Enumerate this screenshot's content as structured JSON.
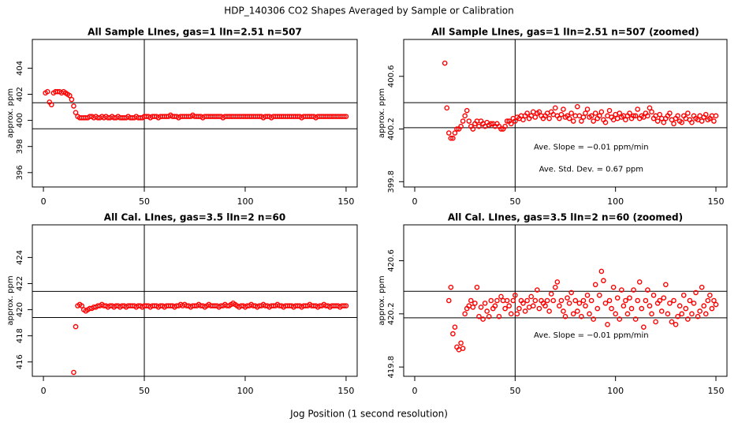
{
  "title": "HDP_140306  CO2 Shapes Averaged by Sample or Calibration",
  "xlabel": "Jog Position (1 second resolution)",
  "chart_data": [
    {
      "type": "scatter",
      "title": "All Sample LInes, gas=1 lIn=2.51 n=507",
      "ylabel": "approx. ppm",
      "color": "#ff0000",
      "xlim": [
        -5.5,
        155.5
      ],
      "xticks": [
        0,
        50,
        100,
        150
      ],
      "ylim": [
        394.9,
        406.2
      ],
      "yticks": [
        396,
        398,
        400,
        402,
        404
      ],
      "hlines": [
        401.35,
        399.36
      ],
      "vlines": [
        50
      ],
      "annotations": [],
      "x": [
        1,
        2,
        3,
        4,
        5,
        6,
        7,
        8,
        9,
        10,
        11,
        12,
        13,
        14,
        15,
        16,
        17,
        18,
        19,
        20,
        21,
        22,
        23,
        24,
        25,
        26,
        27,
        28,
        29,
        30,
        31,
        32,
        33,
        34,
        35,
        36,
        37,
        38,
        39,
        40,
        41,
        42,
        43,
        44,
        45,
        46,
        47,
        48,
        49,
        50,
        51,
        52,
        53,
        54,
        55,
        56,
        57,
        58,
        59,
        60,
        61,
        62,
        63,
        64,
        65,
        66,
        67,
        68,
        69,
        70,
        71,
        72,
        73,
        74,
        75,
        76,
        77,
        78,
        79,
        80,
        81,
        82,
        83,
        84,
        85,
        86,
        87,
        88,
        89,
        90,
        91,
        92,
        93,
        94,
        95,
        96,
        97,
        98,
        99,
        100,
        101,
        102,
        103,
        104,
        105,
        106,
        107,
        108,
        109,
        110,
        111,
        112,
        113,
        114,
        115,
        116,
        117,
        118,
        119,
        120,
        121,
        122,
        123,
        124,
        125,
        126,
        127,
        128,
        129,
        130,
        131,
        132,
        133,
        134,
        135,
        136,
        137,
        138,
        139,
        140,
        141,
        142,
        143,
        144,
        145,
        146,
        147,
        148,
        149,
        150
      ],
      "values": [
        402.1,
        402.2,
        401.4,
        401.2,
        402.1,
        402.2,
        402.2,
        402.2,
        402.1,
        402.2,
        402.1,
        402.0,
        401.9,
        401.6,
        401.1,
        400.6,
        400.3,
        400.2,
        400.2,
        400.2,
        400.2,
        400.2,
        400.3,
        400.3,
        400.2,
        400.3,
        400.2,
        400.2,
        400.3,
        400.2,
        400.3,
        400.2,
        400.2,
        400.3,
        400.2,
        400.2,
        400.3,
        400.2,
        400.2,
        400.2,
        400.2,
        400.3,
        400.2,
        400.2,
        400.2,
        400.3,
        400.2,
        400.2,
        400.2,
        400.3,
        400.3,
        400.3,
        400.2,
        400.3,
        400.3,
        400.3,
        400.2,
        400.3,
        400.3,
        400.3,
        400.3,
        400.3,
        400.4,
        400.3,
        400.3,
        400.3,
        400.2,
        400.3,
        400.3,
        400.3,
        400.3,
        400.3,
        400.3,
        400.4,
        400.3,
        400.3,
        400.3,
        400.3,
        400.2,
        400.3,
        400.3,
        400.3,
        400.3,
        400.3,
        400.3,
        400.3,
        400.3,
        400.3,
        400.2,
        400.3,
        400.3,
        400.3,
        400.3,
        400.3,
        400.3,
        400.3,
        400.3,
        400.3,
        400.3,
        400.3,
        400.3,
        400.3,
        400.3,
        400.3,
        400.3,
        400.3,
        400.3,
        400.3,
        400.2,
        400.3,
        400.3,
        400.3,
        400.2,
        400.3,
        400.3,
        400.3,
        400.3,
        400.3,
        400.3,
        400.3,
        400.3,
        400.3,
        400.3,
        400.3,
        400.3,
        400.3,
        400.3,
        400.2,
        400.3,
        400.3,
        400.3,
        400.3,
        400.3,
        400.3,
        400.2,
        400.3,
        400.3,
        400.3,
        400.3,
        400.3,
        400.3,
        400.3,
        400.3,
        400.3,
        400.3,
        400.3,
        400.3,
        400.3,
        400.3,
        400.3
      ]
    },
    {
      "type": "scatter",
      "title": "All Sample LInes, gas=1 lIn=2.51 n=507 (zoomed)",
      "ylabel": "approx. ppm",
      "color": "#ff0000",
      "xlim": [
        -5.5,
        155.5
      ],
      "xticks": [
        0,
        50,
        100,
        150
      ],
      "ylim": [
        399.76,
        400.88
      ],
      "yticks": [
        399.8,
        400.2,
        400.6
      ],
      "hlines": [
        400.4,
        400.21
      ],
      "vlines": [
        50
      ],
      "annotations": [
        "Ave. Slope =  −0.01  ppm/min",
        "Ave. Std. Dev. =  0.67  ppm"
      ],
      "x": [
        15,
        16,
        17,
        18,
        19,
        20,
        21,
        22,
        23,
        24,
        25,
        26,
        27,
        28,
        29,
        30,
        31,
        32,
        33,
        34,
        35,
        36,
        37,
        38,
        39,
        40,
        41,
        42,
        43,
        44,
        45,
        46,
        47,
        48,
        49,
        50,
        51,
        52,
        53,
        54,
        55,
        56,
        57,
        58,
        59,
        60,
        61,
        62,
        63,
        64,
        65,
        66,
        67,
        68,
        69,
        70,
        71,
        72,
        73,
        74,
        75,
        76,
        77,
        78,
        79,
        80,
        81,
        82,
        83,
        84,
        85,
        86,
        87,
        88,
        89,
        90,
        91,
        92,
        93,
        94,
        95,
        96,
        97,
        98,
        99,
        100,
        101,
        102,
        103,
        104,
        105,
        106,
        107,
        108,
        109,
        110,
        111,
        112,
        113,
        114,
        115,
        116,
        117,
        118,
        119,
        120,
        121,
        122,
        123,
        124,
        125,
        126,
        127,
        128,
        129,
        130,
        131,
        132,
        133,
        134,
        135,
        136,
        137,
        138,
        139,
        140,
        141,
        142,
        143,
        144,
        145,
        146,
        147,
        148,
        149,
        150
      ],
      "values": [
        400.7,
        400.36,
        400.17,
        400.13,
        400.13,
        400.17,
        400.2,
        400.2,
        400.22,
        400.26,
        400.3,
        400.34,
        400.26,
        400.22,
        400.2,
        400.24,
        400.26,
        400.22,
        400.26,
        400.24,
        400.22,
        400.25,
        400.23,
        400.24,
        400.24,
        400.22,
        400.24,
        400.22,
        400.2,
        400.2,
        400.22,
        400.26,
        400.26,
        400.24,
        400.28,
        400.26,
        400.29,
        400.28,
        400.3,
        400.27,
        400.3,
        400.32,
        400.28,
        400.3,
        400.33,
        400.29,
        400.32,
        400.33,
        400.3,
        400.28,
        400.3,
        400.32,
        400.28,
        400.33,
        400.31,
        400.36,
        400.3,
        400.28,
        400.31,
        400.35,
        400.29,
        400.3,
        400.28,
        400.32,
        400.26,
        400.3,
        400.37,
        400.3,
        400.26,
        400.29,
        400.32,
        400.35,
        400.29,
        400.3,
        400.26,
        400.32,
        400.28,
        400.3,
        400.33,
        400.27,
        400.25,
        400.3,
        400.34,
        400.29,
        400.27,
        400.31,
        400.28,
        400.32,
        400.29,
        400.3,
        400.27,
        400.3,
        400.32,
        400.28,
        400.3,
        400.3,
        400.35,
        400.28,
        400.3,
        400.29,
        400.32,
        400.3,
        400.36,
        400.33,
        400.28,
        400.3,
        400.26,
        400.31,
        400.28,
        400.25,
        400.28,
        400.3,
        400.32,
        400.27,
        400.24,
        400.28,
        400.3,
        400.26,
        400.25,
        400.3,
        400.28,
        400.32,
        400.27,
        400.25,
        400.3,
        400.28,
        400.27,
        400.3,
        400.26,
        400.29,
        400.31,
        400.27,
        400.28,
        400.3,
        400.26,
        400.3
      ]
    },
    {
      "type": "scatter",
      "title": "All Cal. LInes, gas=3.5 lIn=2 n=60",
      "ylabel": "approx. ppm",
      "color": "#ff0000",
      "xlim": [
        -5.5,
        155.5
      ],
      "xticks": [
        0,
        50,
        100,
        150
      ],
      "ylim": [
        414.9,
        426.5
      ],
      "yticks": [
        416,
        418,
        420,
        422,
        424
      ],
      "hlines": [
        421.4,
        419.4
      ],
      "vlines": [
        50
      ],
      "annotations": [],
      "x": [
        15,
        16,
        17,
        18,
        19,
        20,
        21,
        22,
        23,
        24,
        25,
        26,
        27,
        28,
        29,
        30,
        31,
        32,
        33,
        34,
        35,
        36,
        37,
        38,
        39,
        40,
        41,
        42,
        43,
        44,
        45,
        46,
        47,
        48,
        49,
        50,
        51,
        52,
        53,
        54,
        55,
        56,
        57,
        58,
        59,
        60,
        61,
        62,
        63,
        64,
        65,
        66,
        67,
        68,
        69,
        70,
        71,
        72,
        73,
        74,
        75,
        76,
        77,
        78,
        79,
        80,
        81,
        82,
        83,
        84,
        85,
        86,
        87,
        88,
        89,
        90,
        91,
        92,
        93,
        94,
        95,
        96,
        97,
        98,
        99,
        100,
        101,
        102,
        103,
        104,
        105,
        106,
        107,
        108,
        109,
        110,
        111,
        112,
        113,
        114,
        115,
        116,
        117,
        118,
        119,
        120,
        121,
        122,
        123,
        124,
        125,
        126,
        127,
        128,
        129,
        130,
        131,
        132,
        133,
        134,
        135,
        136,
        137,
        138,
        139,
        140,
        141,
        142,
        143,
        144,
        145,
        146,
        147,
        148,
        149,
        150
      ],
      "values": [
        415.2,
        418.7,
        420.3,
        420.4,
        420.3,
        420.0,
        419.9,
        420.0,
        420.1,
        420.1,
        420.2,
        420.2,
        420.3,
        420.3,
        420.4,
        420.3,
        420.3,
        420.2,
        420.3,
        420.3,
        420.2,
        420.3,
        420.3,
        420.2,
        420.3,
        420.3,
        420.2,
        420.3,
        420.3,
        420.3,
        420.3,
        420.2,
        420.3,
        420.3,
        420.2,
        420.3,
        420.3,
        420.3,
        420.2,
        420.3,
        420.3,
        420.3,
        420.2,
        420.3,
        420.3,
        420.2,
        420.3,
        420.3,
        420.3,
        420.3,
        420.2,
        420.3,
        420.3,
        420.4,
        420.3,
        420.4,
        420.3,
        420.3,
        420.2,
        420.3,
        420.3,
        420.3,
        420.4,
        420.3,
        420.3,
        420.2,
        420.3,
        420.4,
        420.3,
        420.3,
        420.3,
        420.3,
        420.2,
        420.3,
        420.3,
        420.4,
        420.3,
        420.3,
        420.4,
        420.5,
        420.4,
        420.3,
        420.2,
        420.3,
        420.3,
        420.2,
        420.3,
        420.3,
        420.4,
        420.3,
        420.3,
        420.2,
        420.3,
        420.3,
        420.4,
        420.3,
        420.3,
        420.2,
        420.3,
        420.3,
        420.3,
        420.4,
        420.3,
        420.3,
        420.2,
        420.3,
        420.3,
        420.3,
        420.3,
        420.2,
        420.3,
        420.3,
        420.3,
        420.2,
        420.3,
        420.3,
        420.3,
        420.4,
        420.3,
        420.3,
        420.3,
        420.2,
        420.3,
        420.3,
        420.4,
        420.3,
        420.3,
        420.2,
        420.3,
        420.3,
        420.3,
        420.3,
        420.2,
        420.3,
        420.3,
        420.3
      ]
    },
    {
      "type": "scatter",
      "title": "All Cal. LInes, gas=3.5 lIn=2 n=60 (zoomed)",
      "ylabel": "approx. ppm",
      "color": "#ff0000",
      "xlim": [
        -5.5,
        155.5
      ],
      "xticks": [
        0,
        50,
        100,
        150
      ],
      "ylim": [
        419.73,
        420.87
      ],
      "yticks": [
        419.8,
        420.2,
        420.6
      ],
      "hlines": [
        420.37,
        420.17
      ],
      "vlines": [
        50
      ],
      "annotations": [
        "Ave. Slope =  −0.01  ppm/min"
      ],
      "x": [
        17,
        18,
        19,
        20,
        21,
        22,
        23,
        24,
        25,
        26,
        27,
        28,
        29,
        30,
        31,
        32,
        33,
        34,
        35,
        36,
        37,
        38,
        39,
        40,
        41,
        42,
        43,
        44,
        45,
        46,
        47,
        48,
        49,
        50,
        51,
        52,
        53,
        54,
        55,
        56,
        57,
        58,
        59,
        60,
        61,
        62,
        63,
        64,
        65,
        66,
        67,
        68,
        69,
        70,
        71,
        72,
        73,
        74,
        75,
        76,
        77,
        78,
        79,
        80,
        81,
        82,
        83,
        84,
        85,
        86,
        87,
        88,
        89,
        90,
        91,
        92,
        93,
        94,
        95,
        96,
        97,
        98,
        99,
        100,
        101,
        102,
        103,
        104,
        105,
        106,
        107,
        108,
        109,
        110,
        111,
        112,
        113,
        114,
        115,
        116,
        117,
        118,
        119,
        120,
        121,
        122,
        123,
        124,
        125,
        126,
        127,
        128,
        129,
        130,
        131,
        132,
        133,
        134,
        135,
        136,
        137,
        138,
        139,
        140,
        141,
        142,
        143,
        144,
        145,
        146,
        147,
        148,
        149,
        150
      ],
      "values": [
        420.3,
        420.4,
        420.05,
        420.1,
        419.95,
        419.93,
        419.98,
        419.94,
        420.2,
        420.24,
        420.26,
        420.3,
        420.25,
        420.28,
        420.4,
        420.18,
        420.25,
        420.16,
        420.28,
        420.22,
        420.18,
        420.3,
        420.24,
        420.26,
        420.3,
        420.18,
        420.33,
        420.3,
        420.24,
        420.3,
        420.26,
        420.2,
        420.3,
        420.34,
        420.2,
        420.24,
        420.3,
        420.28,
        420.22,
        420.3,
        420.25,
        420.33,
        420.26,
        420.3,
        420.38,
        420.24,
        420.3,
        420.28,
        420.26,
        420.3,
        420.22,
        420.35,
        420.3,
        420.4,
        420.44,
        420.26,
        420.3,
        420.22,
        420.18,
        420.32,
        420.28,
        420.36,
        420.2,
        420.3,
        420.22,
        420.28,
        420.18,
        420.3,
        420.26,
        420.34,
        420.2,
        420.3,
        420.16,
        420.42,
        420.24,
        420.34,
        420.52,
        420.45,
        420.28,
        420.12,
        420.3,
        420.24,
        420.4,
        420.2,
        420.32,
        420.16,
        420.38,
        420.26,
        420.3,
        420.2,
        420.32,
        420.24,
        420.38,
        420.16,
        420.3,
        420.44,
        420.24,
        420.1,
        420.3,
        420.38,
        420.26,
        420.2,
        420.34,
        420.14,
        420.28,
        420.3,
        420.22,
        420.32,
        420.42,
        420.2,
        420.28,
        420.14,
        420.3,
        420.12,
        420.18,
        420.26,
        420.2,
        420.34,
        420.24,
        420.16,
        420.3,
        420.2,
        420.28,
        420.36,
        420.18,
        420.22,
        420.4,
        420.26,
        420.2,
        420.3,
        420.34,
        420.24,
        420.3,
        420.27
      ]
    }
  ]
}
